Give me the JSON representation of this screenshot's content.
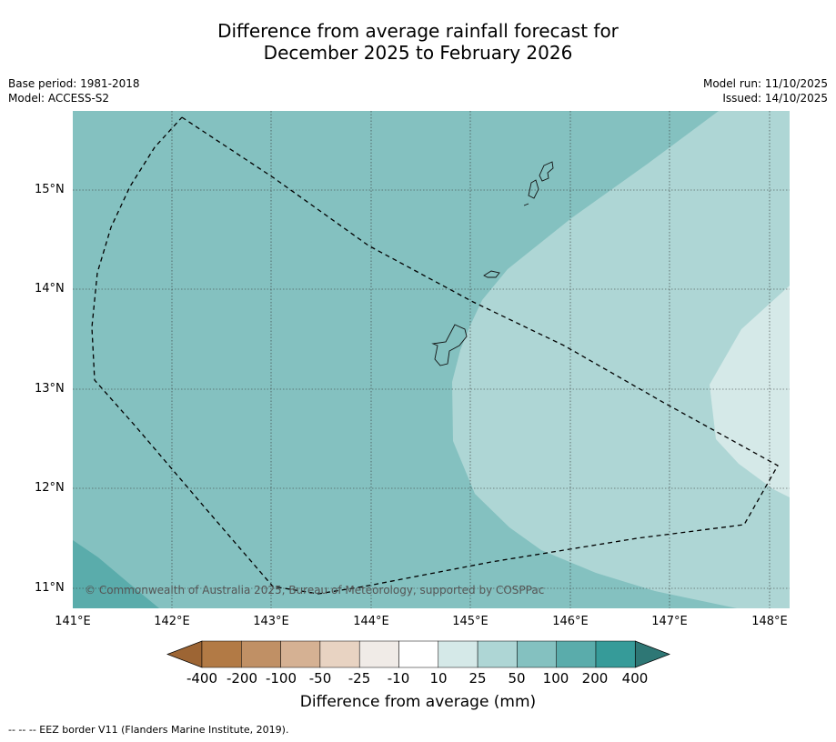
{
  "title": {
    "line1": "Difference from average rainfall forecast for",
    "line2": "December 2025 to February 2026"
  },
  "meta_left": {
    "base_period": "Base period: 1981-2018",
    "model": "Model: ACCESS-S2"
  },
  "meta_right": {
    "model_run": "Model run: 11/10/2025",
    "issued": "Issued: 14/10/2025"
  },
  "map": {
    "lat_labels": [
      "15°N",
      "14°N",
      "13°N",
      "12°N",
      "11°N"
    ],
    "lon_labels": [
      "141°E",
      "142°E",
      "143°E",
      "144°E",
      "145°E",
      "146°E",
      "147°E",
      "148°E"
    ],
    "copyright": "© Commonwealth of Australia 2025, Bureau of Meteorology, supported by COSPPac",
    "colors": {
      "class_50_100": "#84c1c0",
      "class_25_50": "#aed6d5",
      "class_10_25": "#d5e9e8",
      "class_100_200": "#5aacab"
    }
  },
  "colorbar": {
    "title": "Difference from average (mm)",
    "ticks": [
      "-400",
      "-200",
      "-100",
      "-50",
      "-25",
      "-10",
      "10",
      "25",
      "50",
      "100",
      "200",
      "400"
    ],
    "colors": [
      "#9d6534",
      "#b27a45",
      "#c09065",
      "#d5b193",
      "#e8d3c2",
      "#f0ebe7",
      "#ffffff",
      "#d5e9e8",
      "#aed6d5",
      "#84c1c0",
      "#5aacab",
      "#369b99",
      "#2e7775"
    ]
  },
  "footer": "--  --  -- EEZ border V11 (Flanders Marine Institute, 2019)."
}
